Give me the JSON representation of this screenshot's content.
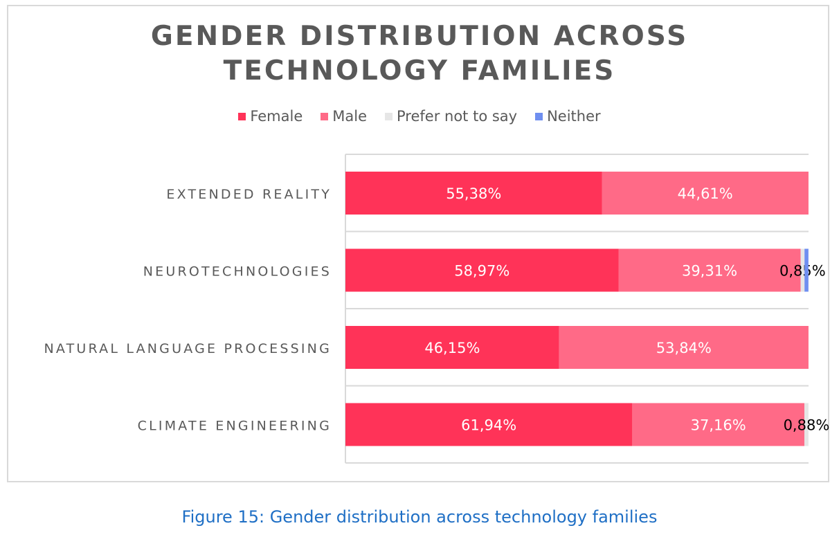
{
  "chart_data": {
    "type": "bar",
    "orientation": "horizontal",
    "stacked": true,
    "title_lines": [
      "GENDER DISTRIBUTION ACROSS",
      "TECHNOLOGY FAMILIES"
    ],
    "categories": [
      "EXTENDED REALITY",
      "NEUROTECHNOLOGIES",
      "NATURAL LANGUAGE PROCESSING",
      "CLIMATE ENGINEERING"
    ],
    "series": [
      {
        "name": "Female",
        "color": "#ff3358",
        "values": [
          55.38,
          58.97,
          46.15,
          61.94
        ],
        "labels": [
          "55,38%",
          "58,97%",
          "46,15%",
          "61,94%"
        ]
      },
      {
        "name": "Male",
        "color": "#ff6a87",
        "values": [
          44.61,
          39.31,
          53.84,
          37.16
        ],
        "labels": [
          "44,61%",
          "39,31%",
          "53,84%",
          "37,16%"
        ]
      },
      {
        "name": "Prefer not to say",
        "color": "#e6e6e6",
        "values": [
          0,
          0.85,
          0,
          0.88
        ],
        "labels": [
          "",
          "0,85%",
          "",
          "0,88%"
        ]
      },
      {
        "name": "Neither",
        "color": "#6f8ff0",
        "values": [
          0,
          0.85,
          0,
          0
        ],
        "labels": [
          "",
          "",
          "",
          ""
        ]
      }
    ],
    "xlim": [
      0,
      100
    ],
    "grid": true,
    "legend": "top"
  },
  "caption": "Figure 15: Gender distribution across technology families"
}
